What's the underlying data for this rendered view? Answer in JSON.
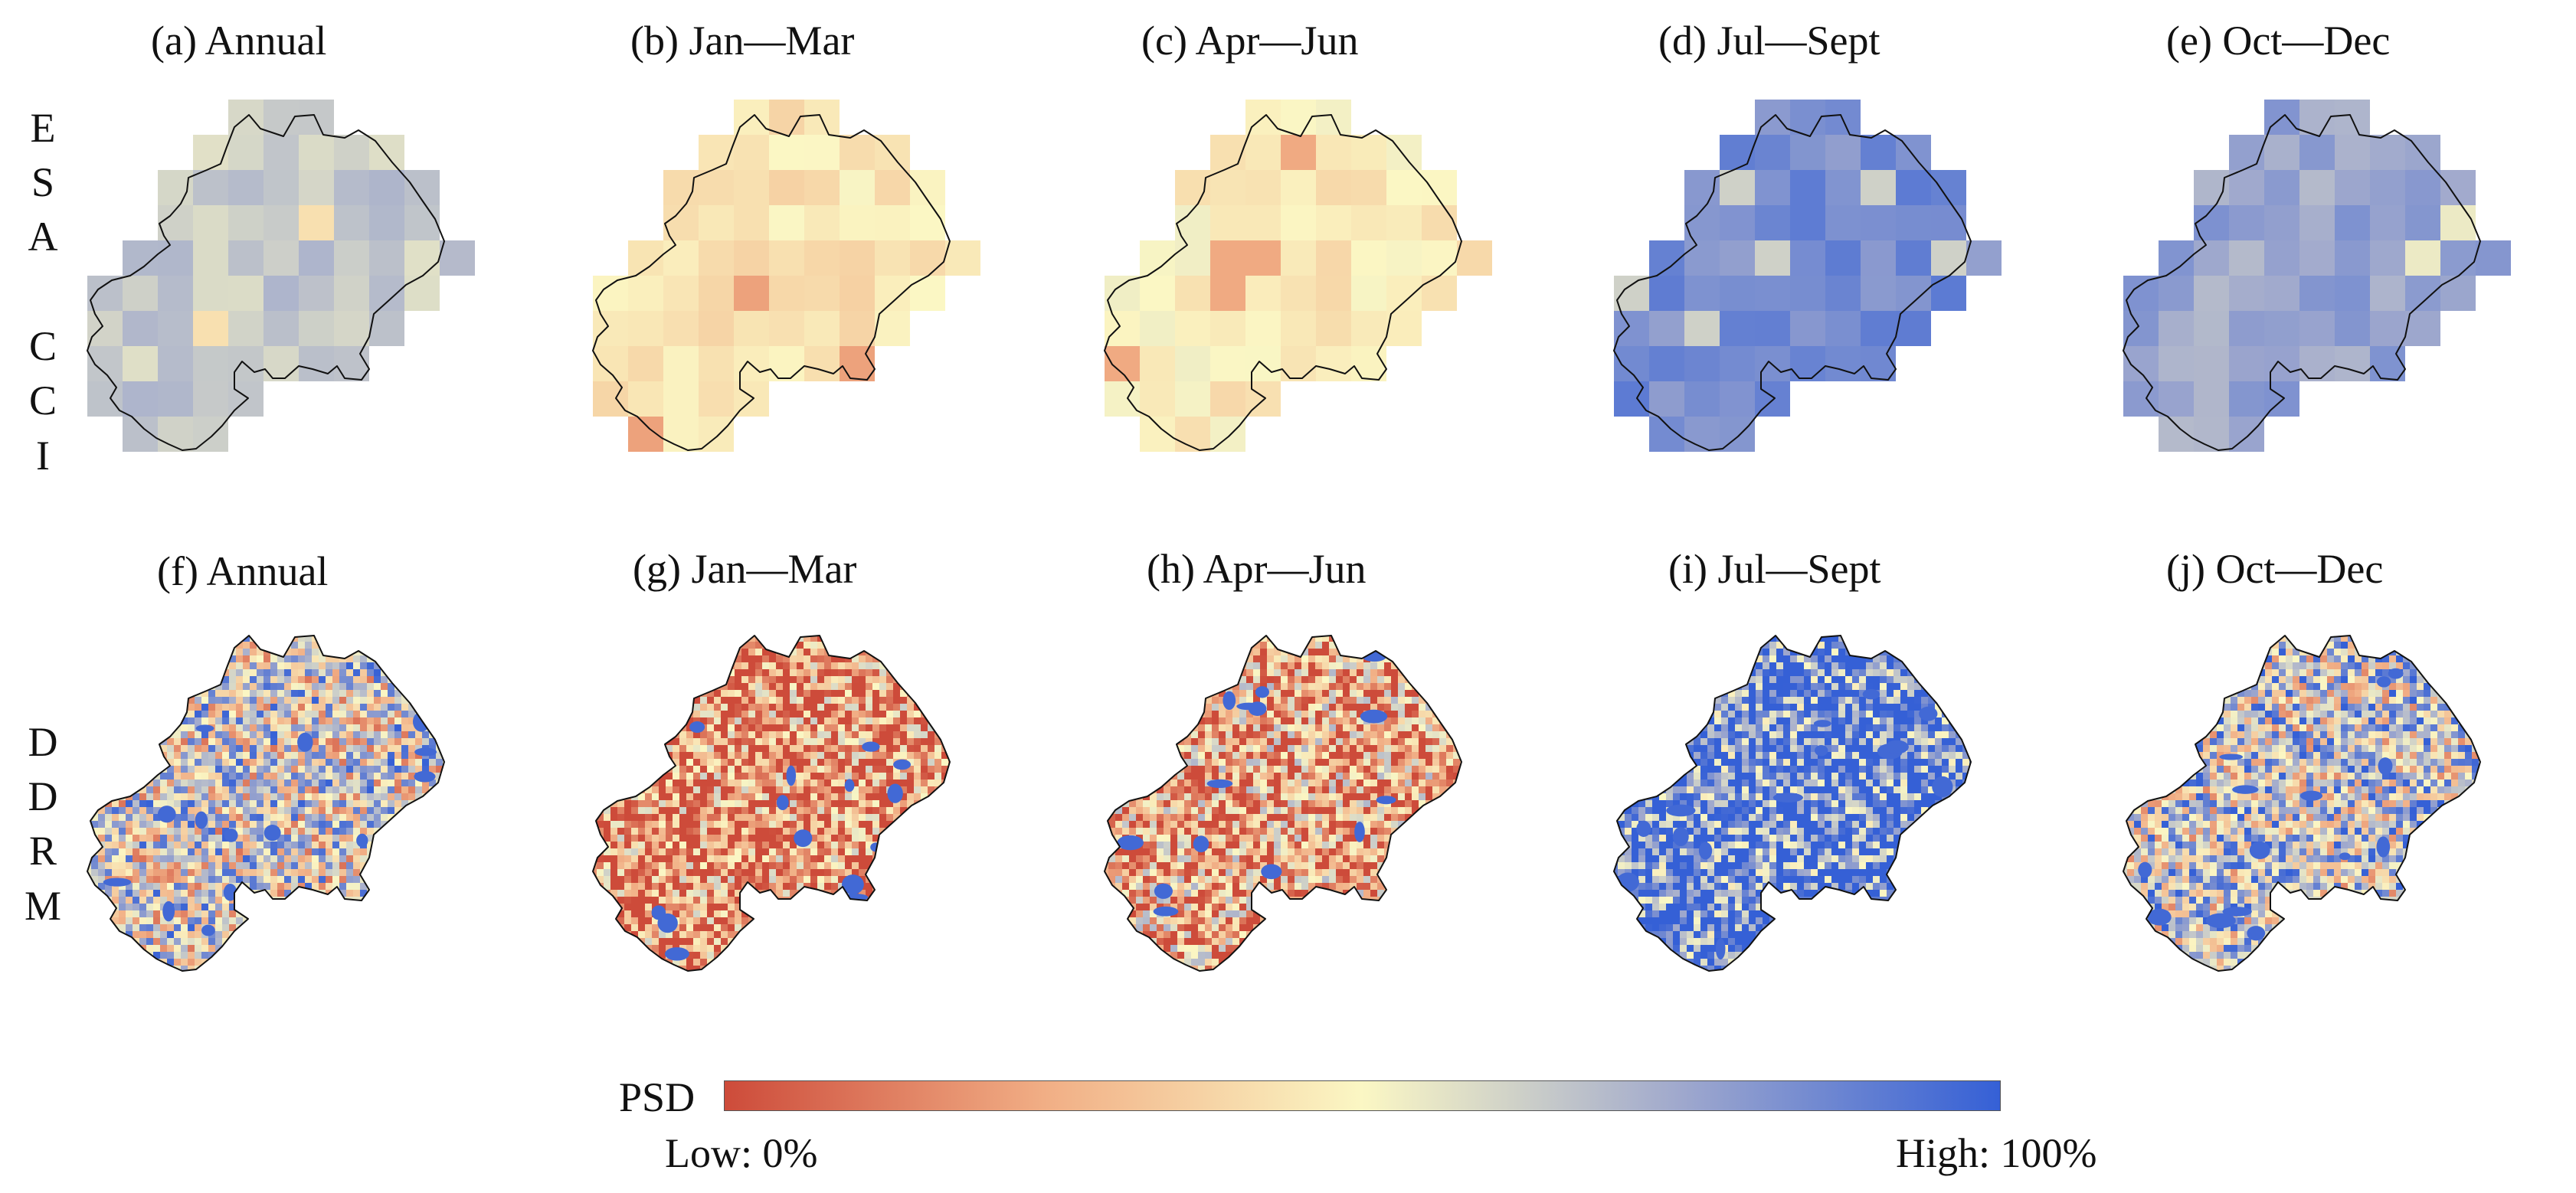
{
  "row_labels": {
    "top": [
      "E",
      "S",
      "A",
      "C",
      "C",
      "I"
    ],
    "bottom": [
      "D",
      "D",
      "R",
      "M"
    ]
  },
  "esa_cci_panels": [
    {
      "title": "(a) Annual",
      "period": "annual",
      "level": 0.64
    },
    {
      "title": "(b) Jan—Mar",
      "period": "jan_mar",
      "level": 0.44
    },
    {
      "title": "(c) Apr—Jun",
      "period": "apr_jun",
      "level": 0.46
    },
    {
      "title": "(d) Jul—Sept",
      "period": "jul_sept",
      "level": 0.84
    },
    {
      "title": "(e) Oct—Dec",
      "period": "oct_dec",
      "level": 0.76
    }
  ],
  "ddrm_panels": [
    {
      "title": "(f) Annual",
      "period": "annual",
      "level": 0.55
    },
    {
      "title": "(g) Jan—Mar",
      "period": "jan_mar",
      "level": 0.18
    },
    {
      "title": "(h) Apr—Jun",
      "period": "apr_jun",
      "level": 0.26
    },
    {
      "title": "(i) Jul—Sept",
      "period": "jul_sept",
      "level": 0.9
    },
    {
      "title": "(j) Oct—Dec",
      "period": "oct_dec",
      "level": 0.6
    }
  ],
  "legend": {
    "title": "PSD",
    "low_label": "Low: 0%",
    "high_label": "High: 100%",
    "colors": [
      "#cd4b3a",
      "#f1ae85",
      "#fbf7c4",
      "#9fa8cd",
      "#3560d6"
    ]
  }
}
